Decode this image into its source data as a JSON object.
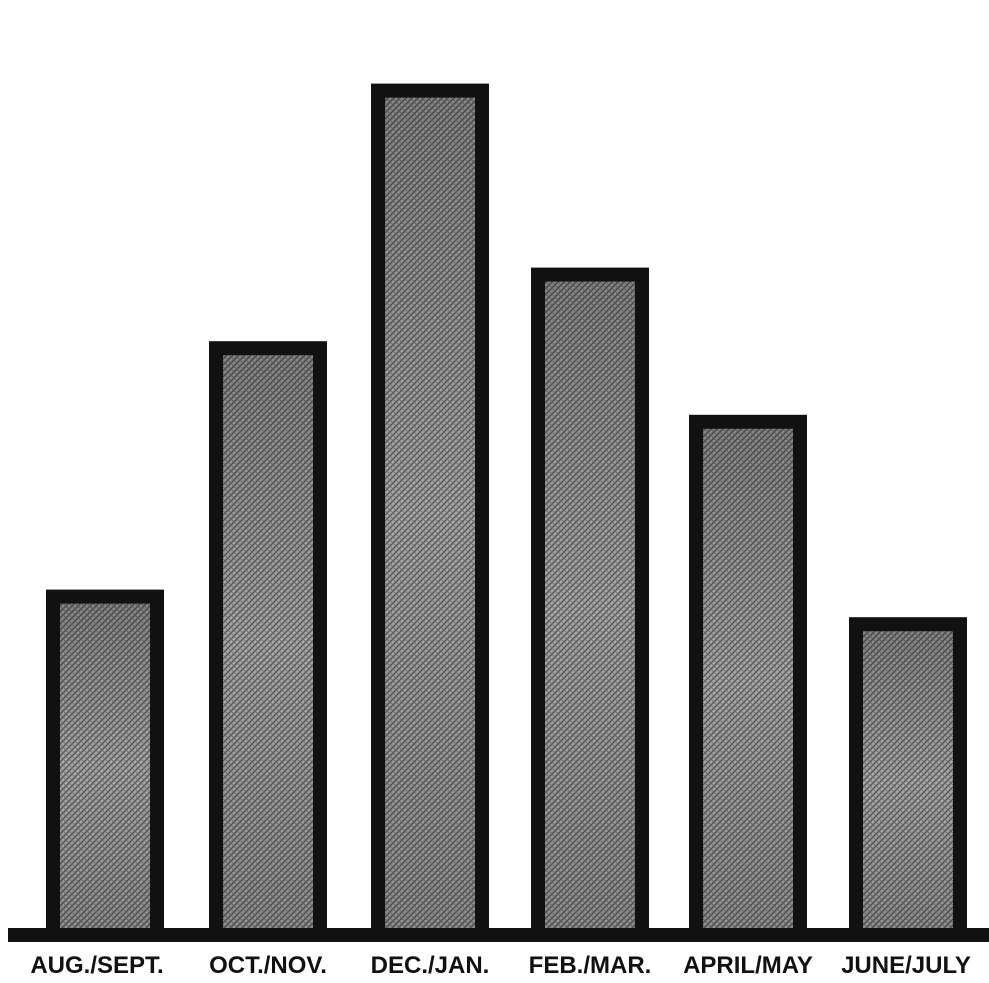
{
  "chart_data": {
    "type": "bar",
    "categories": [
      "AUG./SEPT.",
      "OCT./NOV.",
      "DEC./JAN.",
      "FEB./MAR.",
      "APRIL/MAY",
      "JUNE/JULY"
    ],
    "values": [
      37,
      64,
      92,
      72,
      56,
      34
    ],
    "title": "",
    "xlabel": "",
    "ylabel": "",
    "ylim": [
      0,
      100
    ],
    "grid": false,
    "legend": "none",
    "colors": {
      "bar_outline": "#111111",
      "bar_fill": "#8c8c8c",
      "bar_fill_light": "#c4c4c4",
      "baseline": "#111111",
      "background": "#ffffff"
    }
  }
}
